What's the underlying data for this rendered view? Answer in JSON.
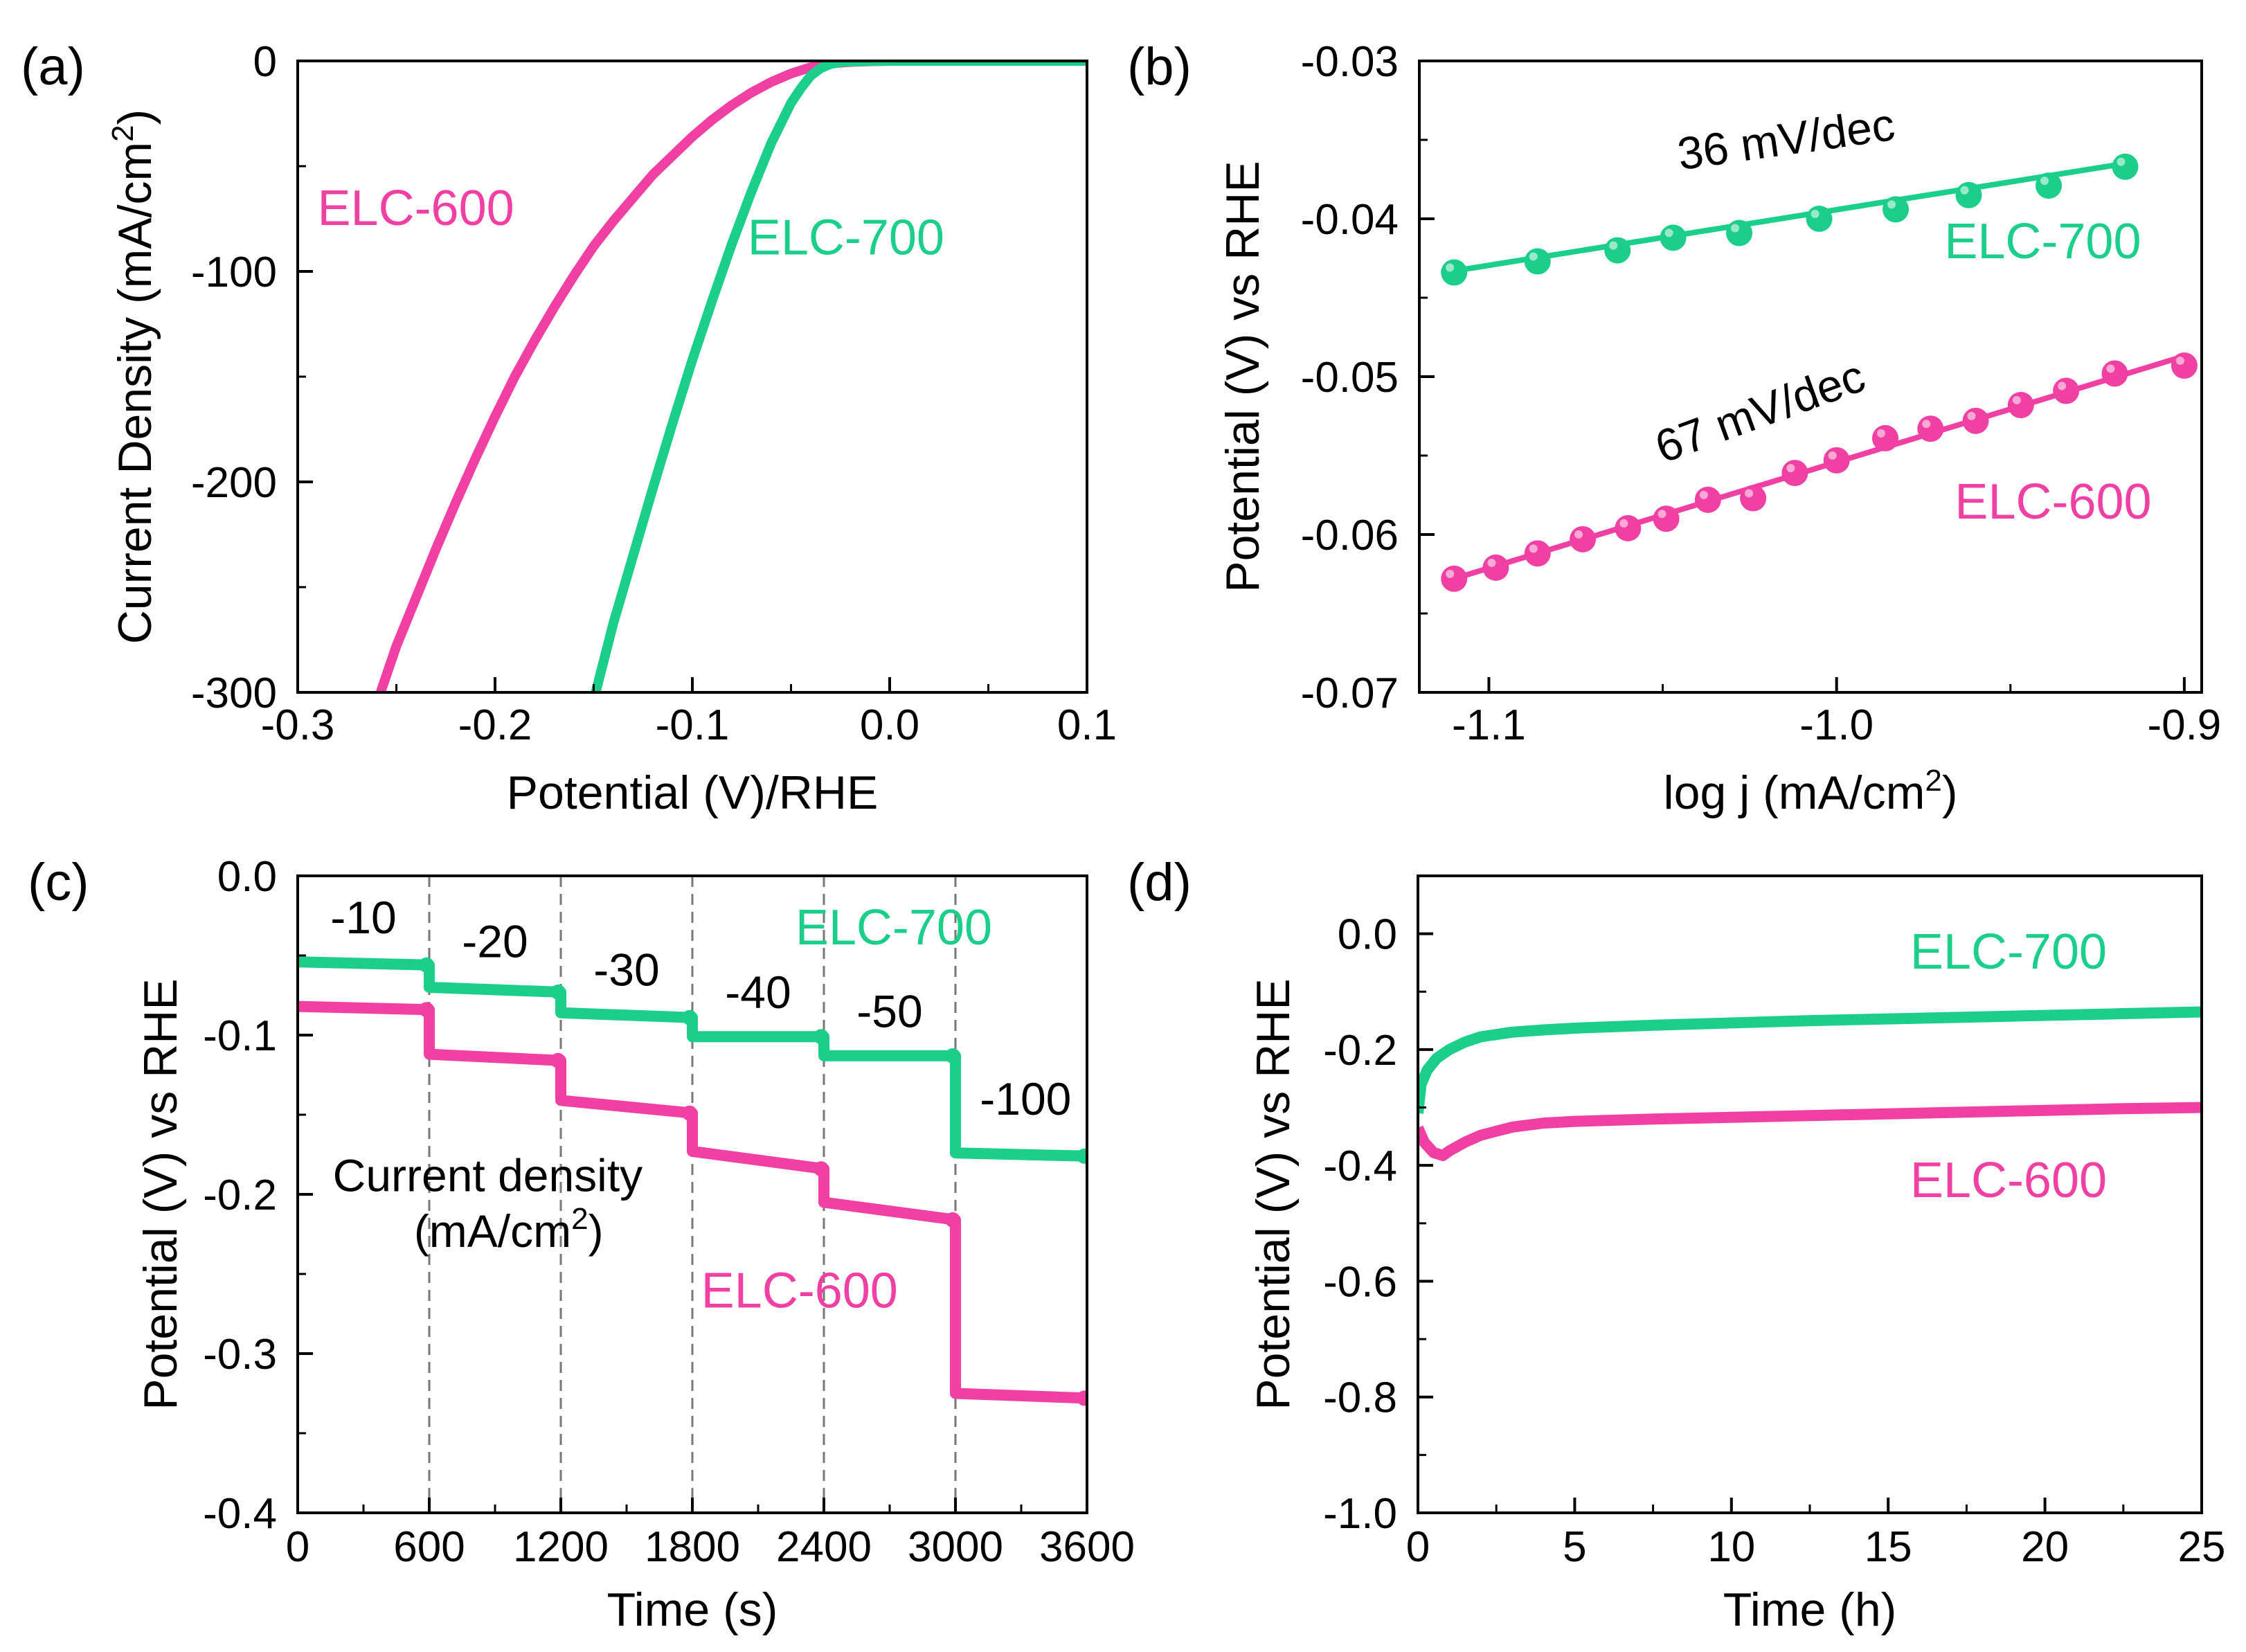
{
  "colors": {
    "elc600": "#F040A4",
    "elc700": "#1BCF8A",
    "axis": "#000000",
    "guide": "#777777"
  },
  "chart_data": [
    {
      "id": "a",
      "panel_label": "(a)",
      "type": "line",
      "xlabel": "Potential (V)/RHE",
      "ylabel": {
        "main": "Current Density (mA/cm",
        "sup": "2",
        "tail": ")"
      },
      "xlim": [
        -0.3,
        0.1
      ],
      "ylim": [
        -300,
        0
      ],
      "xticks": [
        -0.3,
        -0.2,
        -0.1,
        0.0,
        0.1
      ],
      "xtick_labels": [
        "-0.3",
        "-0.2",
        "-0.1",
        "0.0",
        "0.1"
      ],
      "yticks": [
        -300,
        -200,
        -100,
        0
      ],
      "ytick_labels": [
        "-300",
        "-200",
        "-100",
        "0"
      ],
      "series": [
        {
          "name": "ELC-600",
          "color": "#F040A4",
          "x": [
            -0.258,
            -0.25,
            -0.24,
            -0.23,
            -0.22,
            -0.21,
            -0.2,
            -0.19,
            -0.18,
            -0.17,
            -0.16,
            -0.15,
            -0.14,
            -0.13,
            -0.12,
            -0.11,
            -0.1,
            -0.09,
            -0.08,
            -0.07,
            -0.06,
            -0.05,
            -0.04,
            -0.03,
            -0.02,
            -0.01,
            0.0,
            0.05,
            0.1
          ],
          "y": [
            -300,
            -278,
            -255,
            -232,
            -210,
            -189,
            -169,
            -150,
            -133,
            -117,
            -102,
            -88,
            -76,
            -65,
            -54,
            -45,
            -36,
            -28,
            -21,
            -15,
            -10,
            -6,
            -3,
            -1.2,
            -0.5,
            -0.2,
            0,
            0,
            0
          ]
        },
        {
          "name": "ELC-700",
          "color": "#1BCF8A",
          "x": [
            -0.149,
            -0.14,
            -0.13,
            -0.12,
            -0.11,
            -0.1,
            -0.09,
            -0.08,
            -0.07,
            -0.06,
            -0.05,
            -0.045,
            -0.04,
            -0.035,
            -0.03,
            -0.025,
            -0.02,
            -0.01,
            0.0,
            0.05,
            0.1
          ],
          "y": [
            -300,
            -267,
            -235,
            -203,
            -172,
            -142,
            -114,
            -87,
            -62,
            -39,
            -20,
            -13,
            -7,
            -3.5,
            -1.5,
            -0.6,
            -0.3,
            -0.1,
            0,
            0,
            0
          ]
        }
      ],
      "annotations": [
        {
          "text": "ELC-600",
          "color": "#F040A4",
          "x": -0.29,
          "y": -78
        },
        {
          "text": "ELC-700",
          "color": "#1BCF8A",
          "x": -0.072,
          "y": -92
        }
      ]
    },
    {
      "id": "b",
      "panel_label": "(b)",
      "type": "scatter",
      "xlabel": {
        "main": "log j (mA/cm",
        "sup": "2",
        "tail": ")"
      },
      "ylabel": "Potential (V) vs RHE",
      "xlim": [
        -1.12,
        -0.895
      ],
      "ylim": [
        -0.07,
        -0.03
      ],
      "xticks": [
        -1.1,
        -1.0,
        -0.9
      ],
      "xtick_labels": [
        "-1.1",
        "-1.0",
        "-0.9"
      ],
      "yticks": [
        -0.07,
        -0.06,
        -0.05,
        -0.04,
        -0.03
      ],
      "ytick_labels": [
        "-0.07",
        "-0.06",
        "-0.05",
        "-0.04",
        "-0.03"
      ],
      "series": [
        {
          "name": "ELC-700",
          "color": "#1BCF8A",
          "slope_label": "36 mV/dec",
          "x": [
            -1.11,
            -1.086,
            -1.063,
            -1.047,
            -1.028,
            -1.005,
            -0.983,
            -0.962,
            -0.939,
            -0.917
          ],
          "y": [
            -0.0434,
            -0.0427,
            -0.042,
            -0.0412,
            -0.0409,
            -0.04,
            -0.0394,
            -0.0385,
            -0.0379,
            -0.0367
          ],
          "fit_x": [
            -1.11,
            -0.917
          ],
          "fit_y": [
            -0.0433,
            -0.0365
          ]
        },
        {
          "name": "ELC-600",
          "color": "#F040A4",
          "slope_label": "67 mV/dec",
          "x": [
            -1.11,
            -1.098,
            -1.086,
            -1.073,
            -1.06,
            -1.049,
            -1.037,
            -1.024,
            -1.012,
            -1.0,
            -0.986,
            -0.973,
            -0.96,
            -0.947,
            -0.934,
            -0.92,
            -0.9
          ],
          "y": [
            -0.0628,
            -0.0621,
            -0.0612,
            -0.0603,
            -0.0596,
            -0.059,
            -0.0578,
            -0.0577,
            -0.0561,
            -0.0553,
            -0.0539,
            -0.0533,
            -0.0528,
            -0.0518,
            -0.0509,
            -0.0498,
            -0.0493
          ],
          "fit_x": [
            -1.11,
            -0.9
          ],
          "fit_y": [
            -0.0628,
            -0.0487
          ]
        }
      ],
      "annotations": [
        {
          "text": "36 mV/dec",
          "color": "#000000",
          "x": -1.045,
          "y": -0.0369,
          "rotate": -8
        },
        {
          "text": "ELC-700",
          "color": "#1BCF8A",
          "x": -0.969,
          "y": -0.0425
        },
        {
          "text": "67 mV/dec",
          "color": "#000000",
          "x": -1.05,
          "y": -0.0555,
          "rotate": -20
        },
        {
          "text": "ELC-600",
          "color": "#F040A4",
          "x": -0.966,
          "y": -0.059
        }
      ]
    },
    {
      "id": "c",
      "panel_label": "(c)",
      "type": "line",
      "xlabel": "Time (s)",
      "ylabel": "Potential (V) vs RHE",
      "xlim": [
        0,
        3600
      ],
      "ylim": [
        -0.4,
        0.0
      ],
      "xticks": [
        0,
        600,
        1200,
        1800,
        2400,
        3000,
        3600
      ],
      "xtick_labels": [
        "0",
        "600",
        "1200",
        "1800",
        "2400",
        "3000",
        "3600"
      ],
      "yticks": [
        -0.4,
        -0.3,
        -0.2,
        -0.1,
        0.0
      ],
      "ytick_labels": [
        "-0.4",
        "-0.3",
        "-0.2",
        "-0.1",
        "0.0"
      ],
      "step_guides": [
        600,
        1200,
        1800,
        2400,
        3000
      ],
      "step_labels": [
        {
          "text": "-10",
          "x": 300,
          "y": -0.036
        },
        {
          "text": "-20",
          "x": 900,
          "y": -0.051
        },
        {
          "text": "-30",
          "x": 1500,
          "y": -0.069
        },
        {
          "text": "-40",
          "x": 2100,
          "y": -0.083
        },
        {
          "text": "-50",
          "x": 2700,
          "y": -0.095
        },
        {
          "text": "-100",
          "x": 3320,
          "y": -0.15
        }
      ],
      "series": [
        {
          "name": "ELC-700",
          "color": "#1BCF8A",
          "steps": [
            {
              "t0": 0,
              "t1": 600,
              "v0": -0.054,
              "v1": -0.056
            },
            {
              "t0": 600,
              "t1": 1200,
              "v0": -0.07,
              "v1": -0.073
            },
            {
              "t0": 1200,
              "t1": 1800,
              "v0": -0.086,
              "v1": -0.089
            },
            {
              "t0": 1800,
              "t1": 2400,
              "v0": -0.101,
              "v1": -0.101
            },
            {
              "t0": 2400,
              "t1": 3000,
              "v0": -0.113,
              "v1": -0.113
            },
            {
              "t0": 3000,
              "t1": 3600,
              "v0": -0.174,
              "v1": -0.176
            }
          ]
        },
        {
          "name": "ELC-600",
          "color": "#F040A4",
          "steps": [
            {
              "t0": 0,
              "t1": 600,
              "v0": -0.082,
              "v1": -0.084
            },
            {
              "t0": 600,
              "t1": 1200,
              "v0": -0.112,
              "v1": -0.116
            },
            {
              "t0": 1200,
              "t1": 1800,
              "v0": -0.141,
              "v1": -0.149
            },
            {
              "t0": 1800,
              "t1": 2400,
              "v0": -0.173,
              "v1": -0.184
            },
            {
              "t0": 2400,
              "t1": 3000,
              "v0": -0.205,
              "v1": -0.216
            },
            {
              "t0": 3000,
              "t1": 3600,
              "v0": -0.325,
              "v1": -0.328
            }
          ]
        }
      ],
      "annotations": [
        {
          "text": "ELC-700",
          "color": "#1BCF8A",
          "x": 2270,
          "y": -0.043
        },
        {
          "text": "ELC-600",
          "color": "#F040A4",
          "x": 1840,
          "y": -0.271
        },
        {
          "text": "Current density",
          "color": "#000000",
          "x": 160,
          "y": -0.198
        },
        {
          "text": "(mA/cm",
          "sup": "2",
          "tail": ")",
          "color": "#000000",
          "x": 530,
          "y": -0.233
        }
      ]
    },
    {
      "id": "d",
      "panel_label": "(d)",
      "type": "line",
      "xlabel": "Time (h)",
      "ylabel": "Potential (V) vs RHE",
      "xlim": [
        0,
        25
      ],
      "ylim": [
        -1.0,
        0.1
      ],
      "xticks": [
        0,
        5,
        10,
        15,
        20,
        25
      ],
      "xtick_labels": [
        "0",
        "5",
        "10",
        "15",
        "20",
        "25"
      ],
      "yticks": [
        -1.0,
        -0.8,
        -0.6,
        -0.4,
        -0.2,
        0.0
      ],
      "ytick_labels": [
        "-1.0",
        "-0.8",
        "-0.6",
        "-0.4",
        "-0.2",
        "0.0"
      ],
      "series": [
        {
          "name": "ELC-700",
          "color": "#1BCF8A",
          "x": [
            0,
            0.1,
            0.3,
            0.6,
            1.0,
            1.5,
            2.0,
            3.0,
            4.0,
            5.0,
            7.5,
            10,
            12.5,
            15,
            17.5,
            20,
            22.5,
            25
          ],
          "y": [
            -0.31,
            -0.26,
            -0.235,
            -0.215,
            -0.2,
            -0.187,
            -0.178,
            -0.17,
            -0.166,
            -0.163,
            -0.158,
            -0.154,
            -0.15,
            -0.147,
            -0.144,
            -0.141,
            -0.138,
            -0.135
          ]
        },
        {
          "name": "ELC-600",
          "color": "#F040A4",
          "x": [
            0,
            0.2,
            0.5,
            0.8,
            1.0,
            1.5,
            2.0,
            3.0,
            4.0,
            5.0,
            7.5,
            10,
            12.5,
            15,
            17.5,
            20,
            22.5,
            25
          ],
          "y": [
            -0.335,
            -0.36,
            -0.378,
            -0.383,
            -0.375,
            -0.36,
            -0.348,
            -0.334,
            -0.327,
            -0.324,
            -0.32,
            -0.317,
            -0.314,
            -0.311,
            -0.308,
            -0.305,
            -0.302,
            -0.3
          ]
        }
      ],
      "annotations": [
        {
          "text": "ELC-700",
          "color": "#1BCF8A",
          "x": 15.7,
          "y": -0.06
        },
        {
          "text": "ELC-600",
          "color": "#F040A4",
          "x": 15.7,
          "y": -0.455
        }
      ]
    }
  ]
}
